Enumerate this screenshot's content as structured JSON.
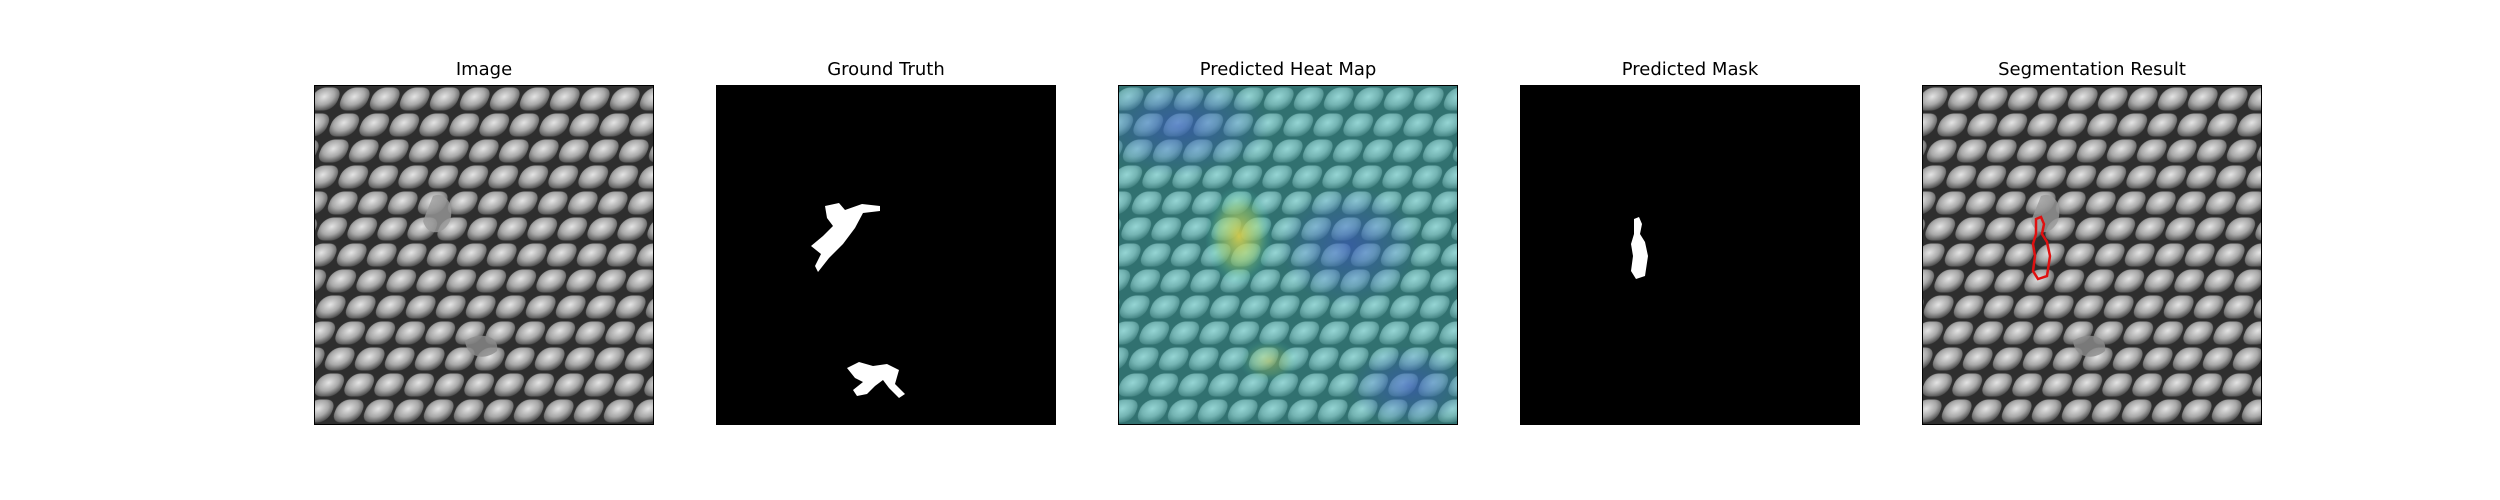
{
  "figure": {
    "panels": [
      {
        "title": "Image"
      },
      {
        "title": "Ground Truth"
      },
      {
        "title": "Predicted Heat Map"
      },
      {
        "title": "Predicted Mask"
      },
      {
        "title": "Segmentation Result"
      }
    ]
  },
  "colors": {
    "background": "#ffffff",
    "mask_foreground": "#ffffff",
    "mask_background": "#000000",
    "contour": "#e01010",
    "heatmap_low": "#3b4fc4",
    "heatmap_mid": "#35c4c0",
    "heatmap_high": "#e8d84a"
  }
}
